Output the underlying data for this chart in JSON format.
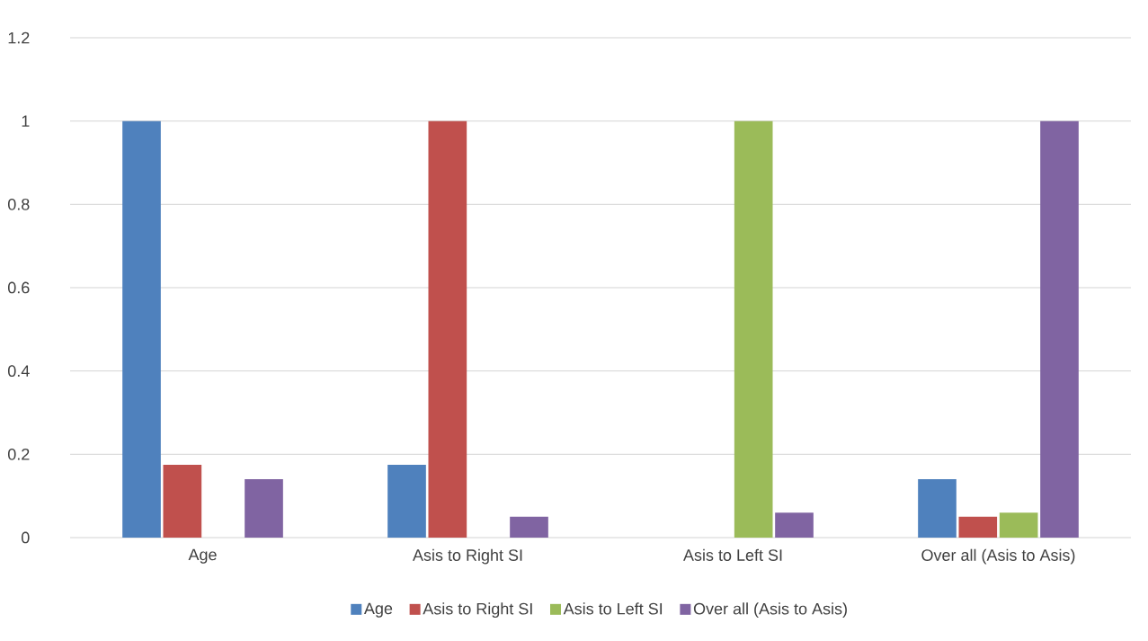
{
  "chart_data": {
    "type": "bar",
    "categories": [
      "Age",
      "Asis to Right SI",
      "Asis to Left SI",
      "Over all (Asis to Asis)"
    ],
    "series": [
      {
        "name": "Age",
        "color": "#4f81bd",
        "values": [
          1,
          0.175,
          0,
          0.14
        ]
      },
      {
        "name": "Asis to Right SI",
        "color": "#c0504d",
        "values": [
          0.175,
          1,
          0,
          0.05
        ]
      },
      {
        "name": "Asis to Left SI",
        "color": "#9bbb59",
        "values": [
          0,
          0,
          1,
          0.06
        ]
      },
      {
        "name": "Over all (Asis to Asis)",
        "color": "#8064a2",
        "values": [
          0.14,
          0.05,
          0.06,
          1
        ]
      }
    ],
    "ylim": [
      0,
      1.2
    ],
    "yticks": [
      0,
      0.2,
      0.4,
      0.6,
      0.8,
      1,
      1.2
    ],
    "grid": "y",
    "legend": "bottom"
  }
}
